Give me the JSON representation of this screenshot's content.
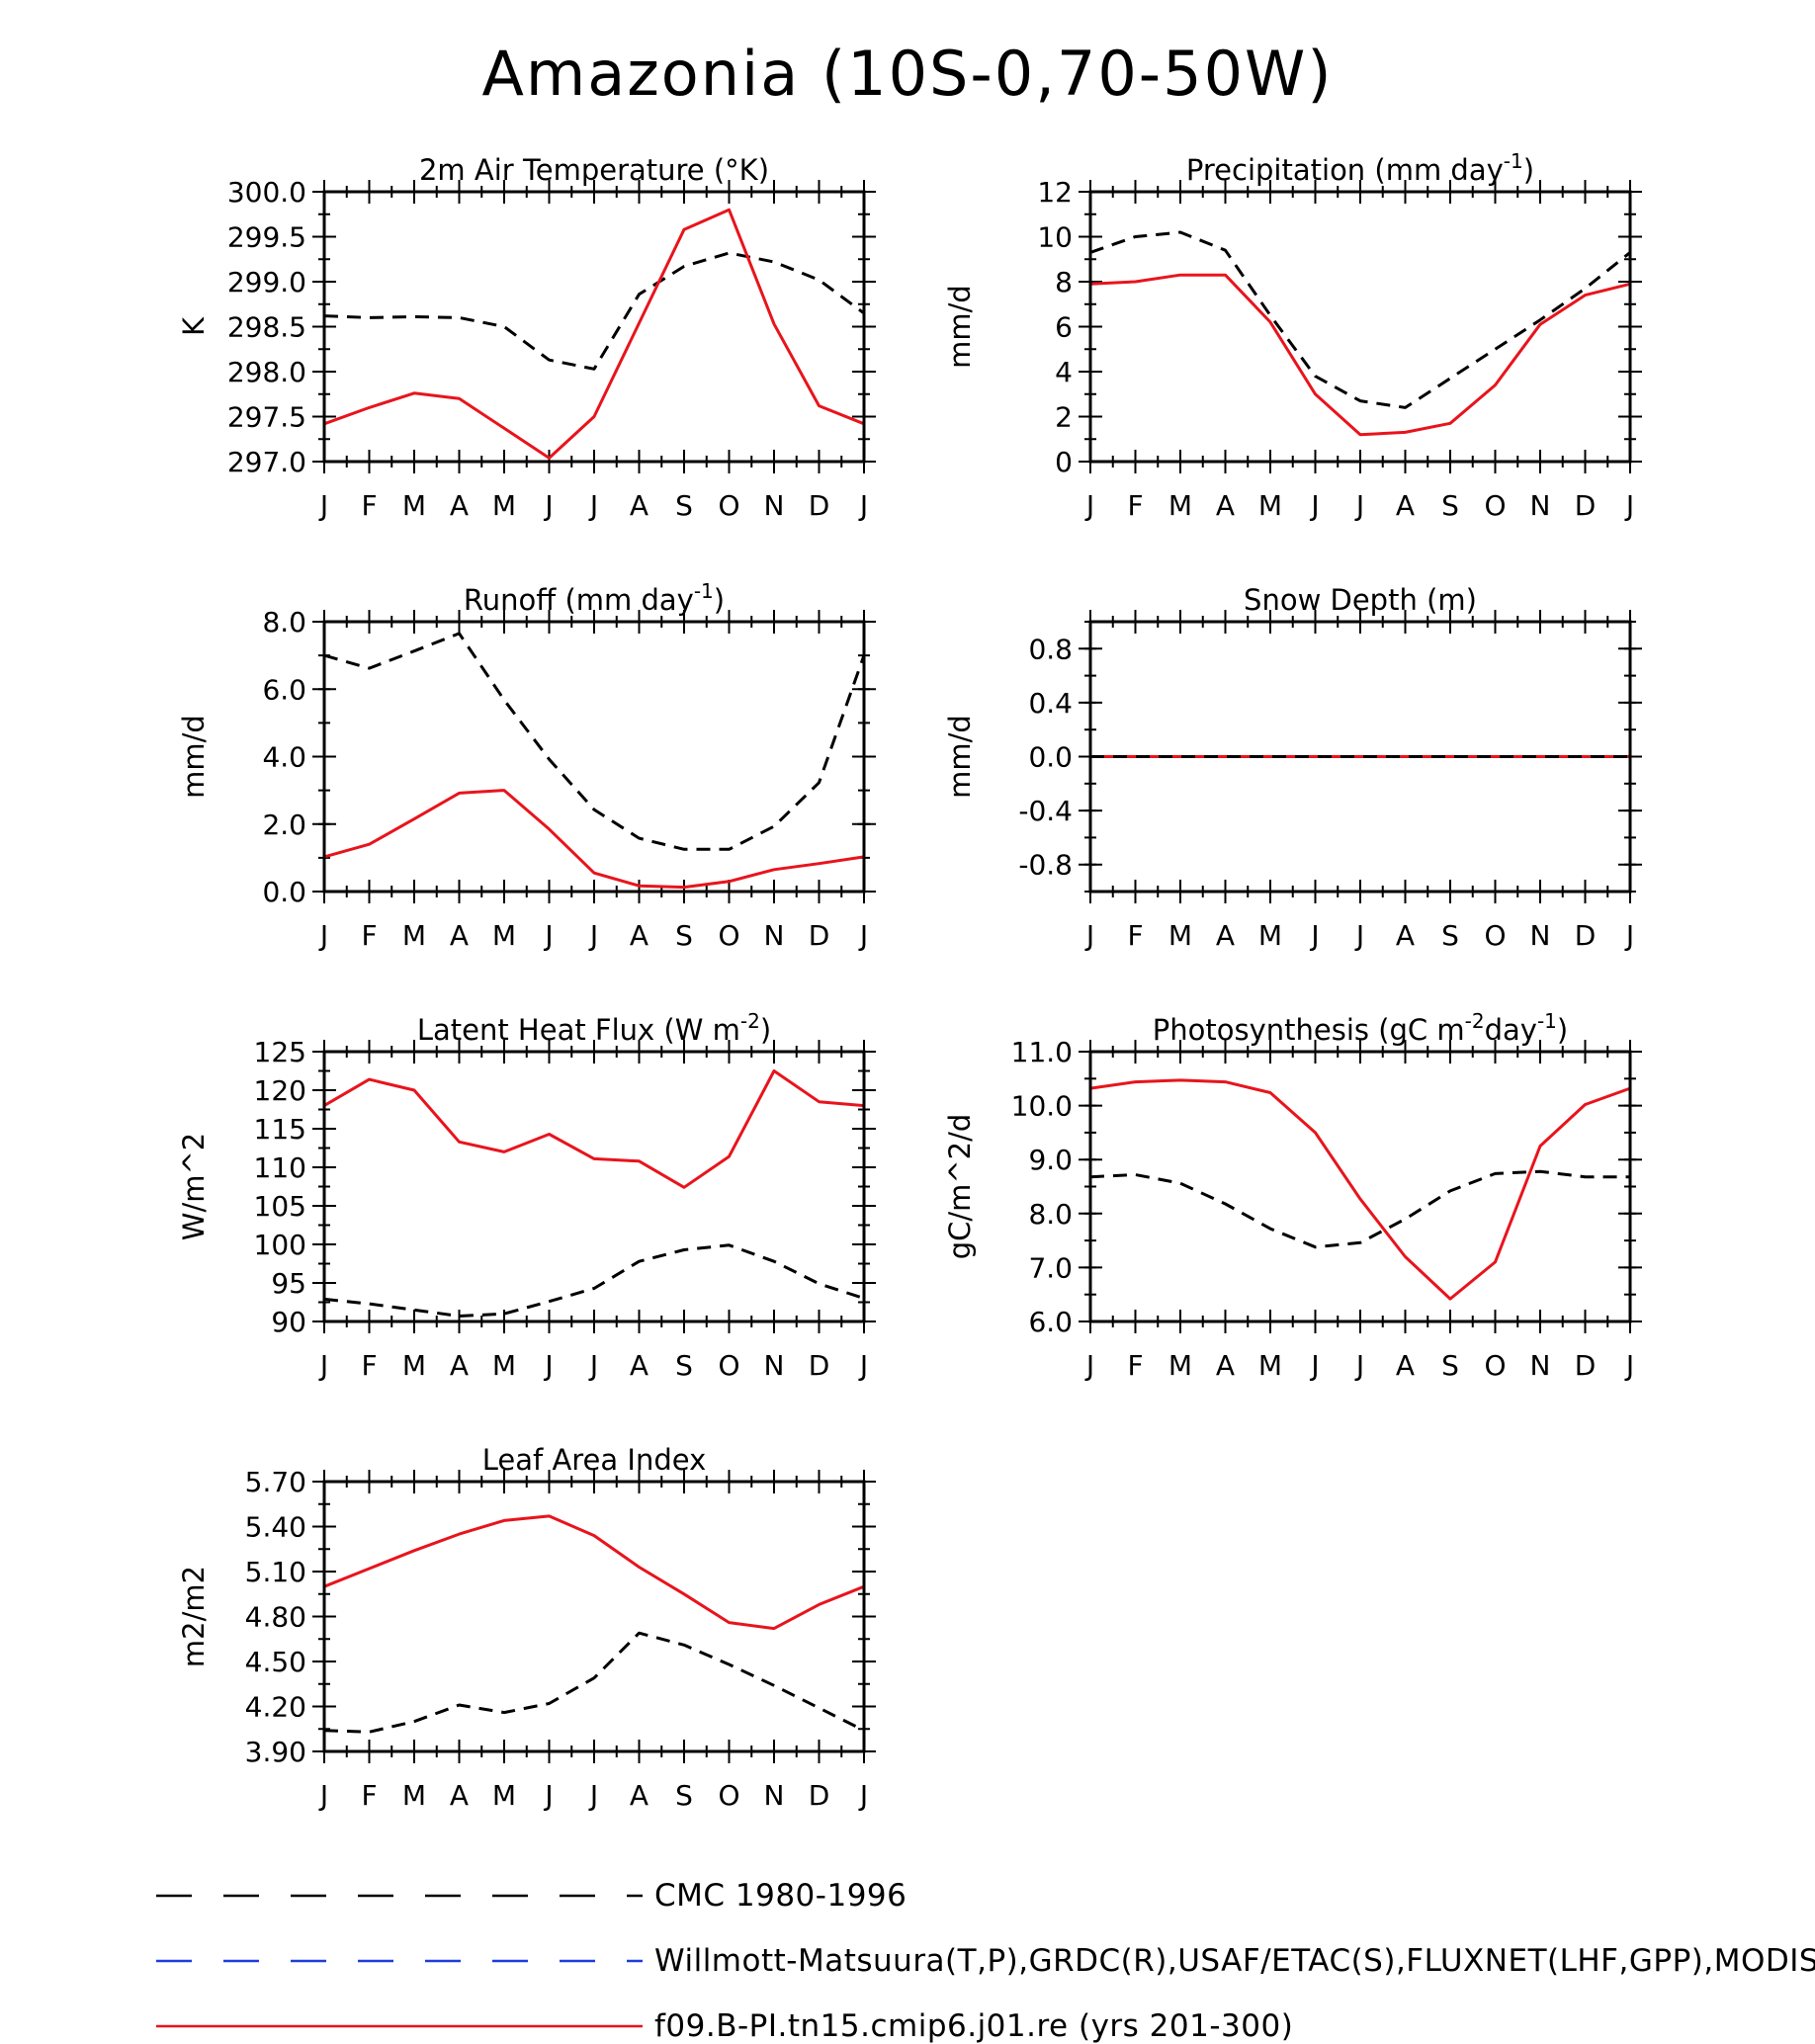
{
  "page_title": "Amazonia (10S-0,70-50W)",
  "months": [
    "J",
    "F",
    "M",
    "A",
    "M",
    "J",
    "J",
    "A",
    "S",
    "O",
    "N",
    "D",
    "J"
  ],
  "colors": {
    "obs": "#000000",
    "obs_alt": "#1f3fd6",
    "model": "#e8141c"
  },
  "legend": [
    {
      "label": "CMC 1980-1996",
      "style": "dashed",
      "color": "#000000"
    },
    {
      "label": "Willmott-Matsuura(T,P),GRDC(R),USAF/ETAC(S),FLUXNET(LHF,GPP),MODIS(L",
      "style": "dashed",
      "color": "#1f3fd6"
    },
    {
      "label": "f09.B-PI.tn15.cmip6.j01.re (yrs 201-300)",
      "style": "solid",
      "color": "#e8141c"
    }
  ],
  "chart_data": [
    {
      "type": "line",
      "title": "2m Air Temperature (°K)",
      "ylabel": "K",
      "ylim": [
        297.0,
        300.0
      ],
      "yticks": [
        "297.0",
        "297.5",
        "298.0",
        "298.5",
        "299.0",
        "299.5",
        "300.0"
      ],
      "x": [
        "J",
        "F",
        "M",
        "A",
        "M",
        "J",
        "J",
        "A",
        "S",
        "O",
        "N",
        "D",
        "J"
      ],
      "series": [
        {
          "style": "dashed",
          "values": [
            298.62,
            298.6,
            298.61,
            298.6,
            298.5,
            298.13,
            298.03,
            298.86,
            299.17,
            299.32,
            299.22,
            299.02,
            298.65
          ]
        },
        {
          "style": "solid",
          "values": [
            297.42,
            297.6,
            297.76,
            297.7,
            297.37,
            297.04,
            297.5,
            298.54,
            299.58,
            299.8,
            298.53,
            297.62,
            297.42
          ]
        }
      ]
    },
    {
      "type": "line",
      "title": "Precipitation (mm day",
      "title_sup": "-1",
      "title_end": ")",
      "ylabel": "mm/d",
      "ylim": [
        0,
        12
      ],
      "yticks": [
        "0",
        "2",
        "4",
        "6",
        "8",
        "10",
        "12"
      ],
      "x": [
        "J",
        "F",
        "M",
        "A",
        "M",
        "J",
        "J",
        "A",
        "S",
        "O",
        "N",
        "D",
        "J"
      ],
      "series": [
        {
          "style": "dashed",
          "values": [
            9.3,
            10.0,
            10.2,
            9.4,
            6.5,
            3.8,
            2.7,
            2.4,
            3.7,
            5.0,
            6.3,
            7.7,
            9.3
          ]
        },
        {
          "style": "solid",
          "values": [
            7.9,
            8.0,
            8.3,
            8.3,
            6.2,
            3.0,
            1.2,
            1.3,
            1.7,
            3.4,
            6.1,
            7.4,
            7.9
          ]
        }
      ]
    },
    {
      "type": "line",
      "title": "Runoff (mm day",
      "title_sup": "-1",
      "title_end": ")",
      "ylabel": "mm/d",
      "ylim": [
        0,
        8
      ],
      "yticks": [
        "0.0",
        "2.0",
        "4.0",
        "6.0",
        "8.0"
      ],
      "x": [
        "J",
        "F",
        "M",
        "A",
        "M",
        "J",
        "J",
        "A",
        "S",
        "O",
        "N",
        "D",
        "J"
      ],
      "series": [
        {
          "style": "dashed",
          "values": [
            7.0,
            6.62,
            7.13,
            7.65,
            5.68,
            3.92,
            2.43,
            1.58,
            1.25,
            1.25,
            1.93,
            3.23,
            7.0
          ]
        },
        {
          "style": "solid",
          "values": [
            1.03,
            1.4,
            2.15,
            2.92,
            3.0,
            1.85,
            0.55,
            0.17,
            0.13,
            0.3,
            0.65,
            0.83,
            1.03
          ]
        }
      ]
    },
    {
      "type": "line",
      "title": "Snow Depth (m)",
      "ylabel": "mm/d",
      "ylim": [
        -1.0,
        1.0
      ],
      "yticks": [
        "-0.8",
        "-0.4",
        "0.0",
        "0.4",
        "0.8"
      ],
      "ytick_values": [
        -0.8,
        -0.4,
        0.0,
        0.4,
        0.8
      ],
      "x": [
        "J",
        "F",
        "M",
        "A",
        "M",
        "J",
        "J",
        "A",
        "S",
        "O",
        "N",
        "D",
        "J"
      ],
      "series": [
        {
          "style": "solid",
          "values": [
            0,
            0,
            0,
            0,
            0,
            0,
            0,
            0,
            0,
            0,
            0,
            0,
            0
          ]
        },
        {
          "style": "dashed",
          "values": [
            0,
            0,
            0,
            0,
            0,
            0,
            0,
            0,
            0,
            0,
            0,
            0,
            0
          ]
        }
      ]
    },
    {
      "type": "line",
      "title": "Latent Heat Flux (W m",
      "title_sup": "-2",
      "title_end": ")",
      "ylabel": "W/m^2",
      "ylim": [
        90,
        125
      ],
      "yticks": [
        "90",
        "95",
        "100",
        "105",
        "110",
        "115",
        "120",
        "125"
      ],
      "x": [
        "J",
        "F",
        "M",
        "A",
        "M",
        "J",
        "J",
        "A",
        "S",
        "O",
        "N",
        "D",
        "J"
      ],
      "series": [
        {
          "style": "dashed",
          "values": [
            92.9,
            92.3,
            91.5,
            90.7,
            91.0,
            92.6,
            94.3,
            97.8,
            99.3,
            99.9,
            97.8,
            94.9,
            93.0
          ]
        },
        {
          "style": "solid",
          "values": [
            118.0,
            121.4,
            120.0,
            113.3,
            112.0,
            114.3,
            111.1,
            110.8,
            107.4,
            111.4,
            122.5,
            118.5,
            118.0
          ]
        }
      ]
    },
    {
      "type": "line",
      "title": "Photosynthesis (gC m",
      "title_sup": "-2",
      "title_mid": "day",
      "title_sup2": "-1",
      "title_end": ")",
      "ylabel": "gC/m^2/d",
      "ylim": [
        6.0,
        11.0
      ],
      "yticks": [
        "6.0",
        "7.0",
        "8.0",
        "9.0",
        "10.0",
        "11.0"
      ],
      "x": [
        "J",
        "F",
        "M",
        "A",
        "M",
        "J",
        "J",
        "A",
        "S",
        "O",
        "N",
        "D",
        "J"
      ],
      "series": [
        {
          "style": "dashed",
          "values": [
            8.68,
            8.72,
            8.56,
            8.18,
            7.72,
            7.38,
            7.46,
            7.9,
            8.42,
            8.74,
            8.78,
            8.68,
            8.68
          ]
        },
        {
          "style": "solid",
          "values": [
            10.32,
            10.44,
            10.47,
            10.44,
            10.24,
            9.5,
            8.27,
            7.2,
            6.42,
            7.1,
            9.25,
            10.02,
            10.32
          ]
        }
      ]
    },
    {
      "type": "line",
      "title": "Leaf Area Index",
      "ylabel": "m2/m2",
      "ylim": [
        3.9,
        5.7
      ],
      "yticks": [
        "3.90",
        "4.20",
        "4.50",
        "4.80",
        "5.10",
        "5.40",
        "5.70"
      ],
      "x": [
        "J",
        "F",
        "M",
        "A",
        "M",
        "J",
        "J",
        "A",
        "S",
        "O",
        "N",
        "D",
        "J"
      ],
      "series": [
        {
          "style": "dashed",
          "values": [
            4.04,
            4.03,
            4.1,
            4.21,
            4.16,
            4.22,
            4.39,
            4.69,
            4.61,
            4.48,
            4.34,
            4.19,
            4.04
          ]
        },
        {
          "style": "solid",
          "values": [
            5.0,
            5.12,
            5.24,
            5.35,
            5.44,
            5.47,
            5.34,
            5.13,
            4.95,
            4.76,
            4.72,
            4.88,
            5.0
          ]
        }
      ]
    }
  ]
}
